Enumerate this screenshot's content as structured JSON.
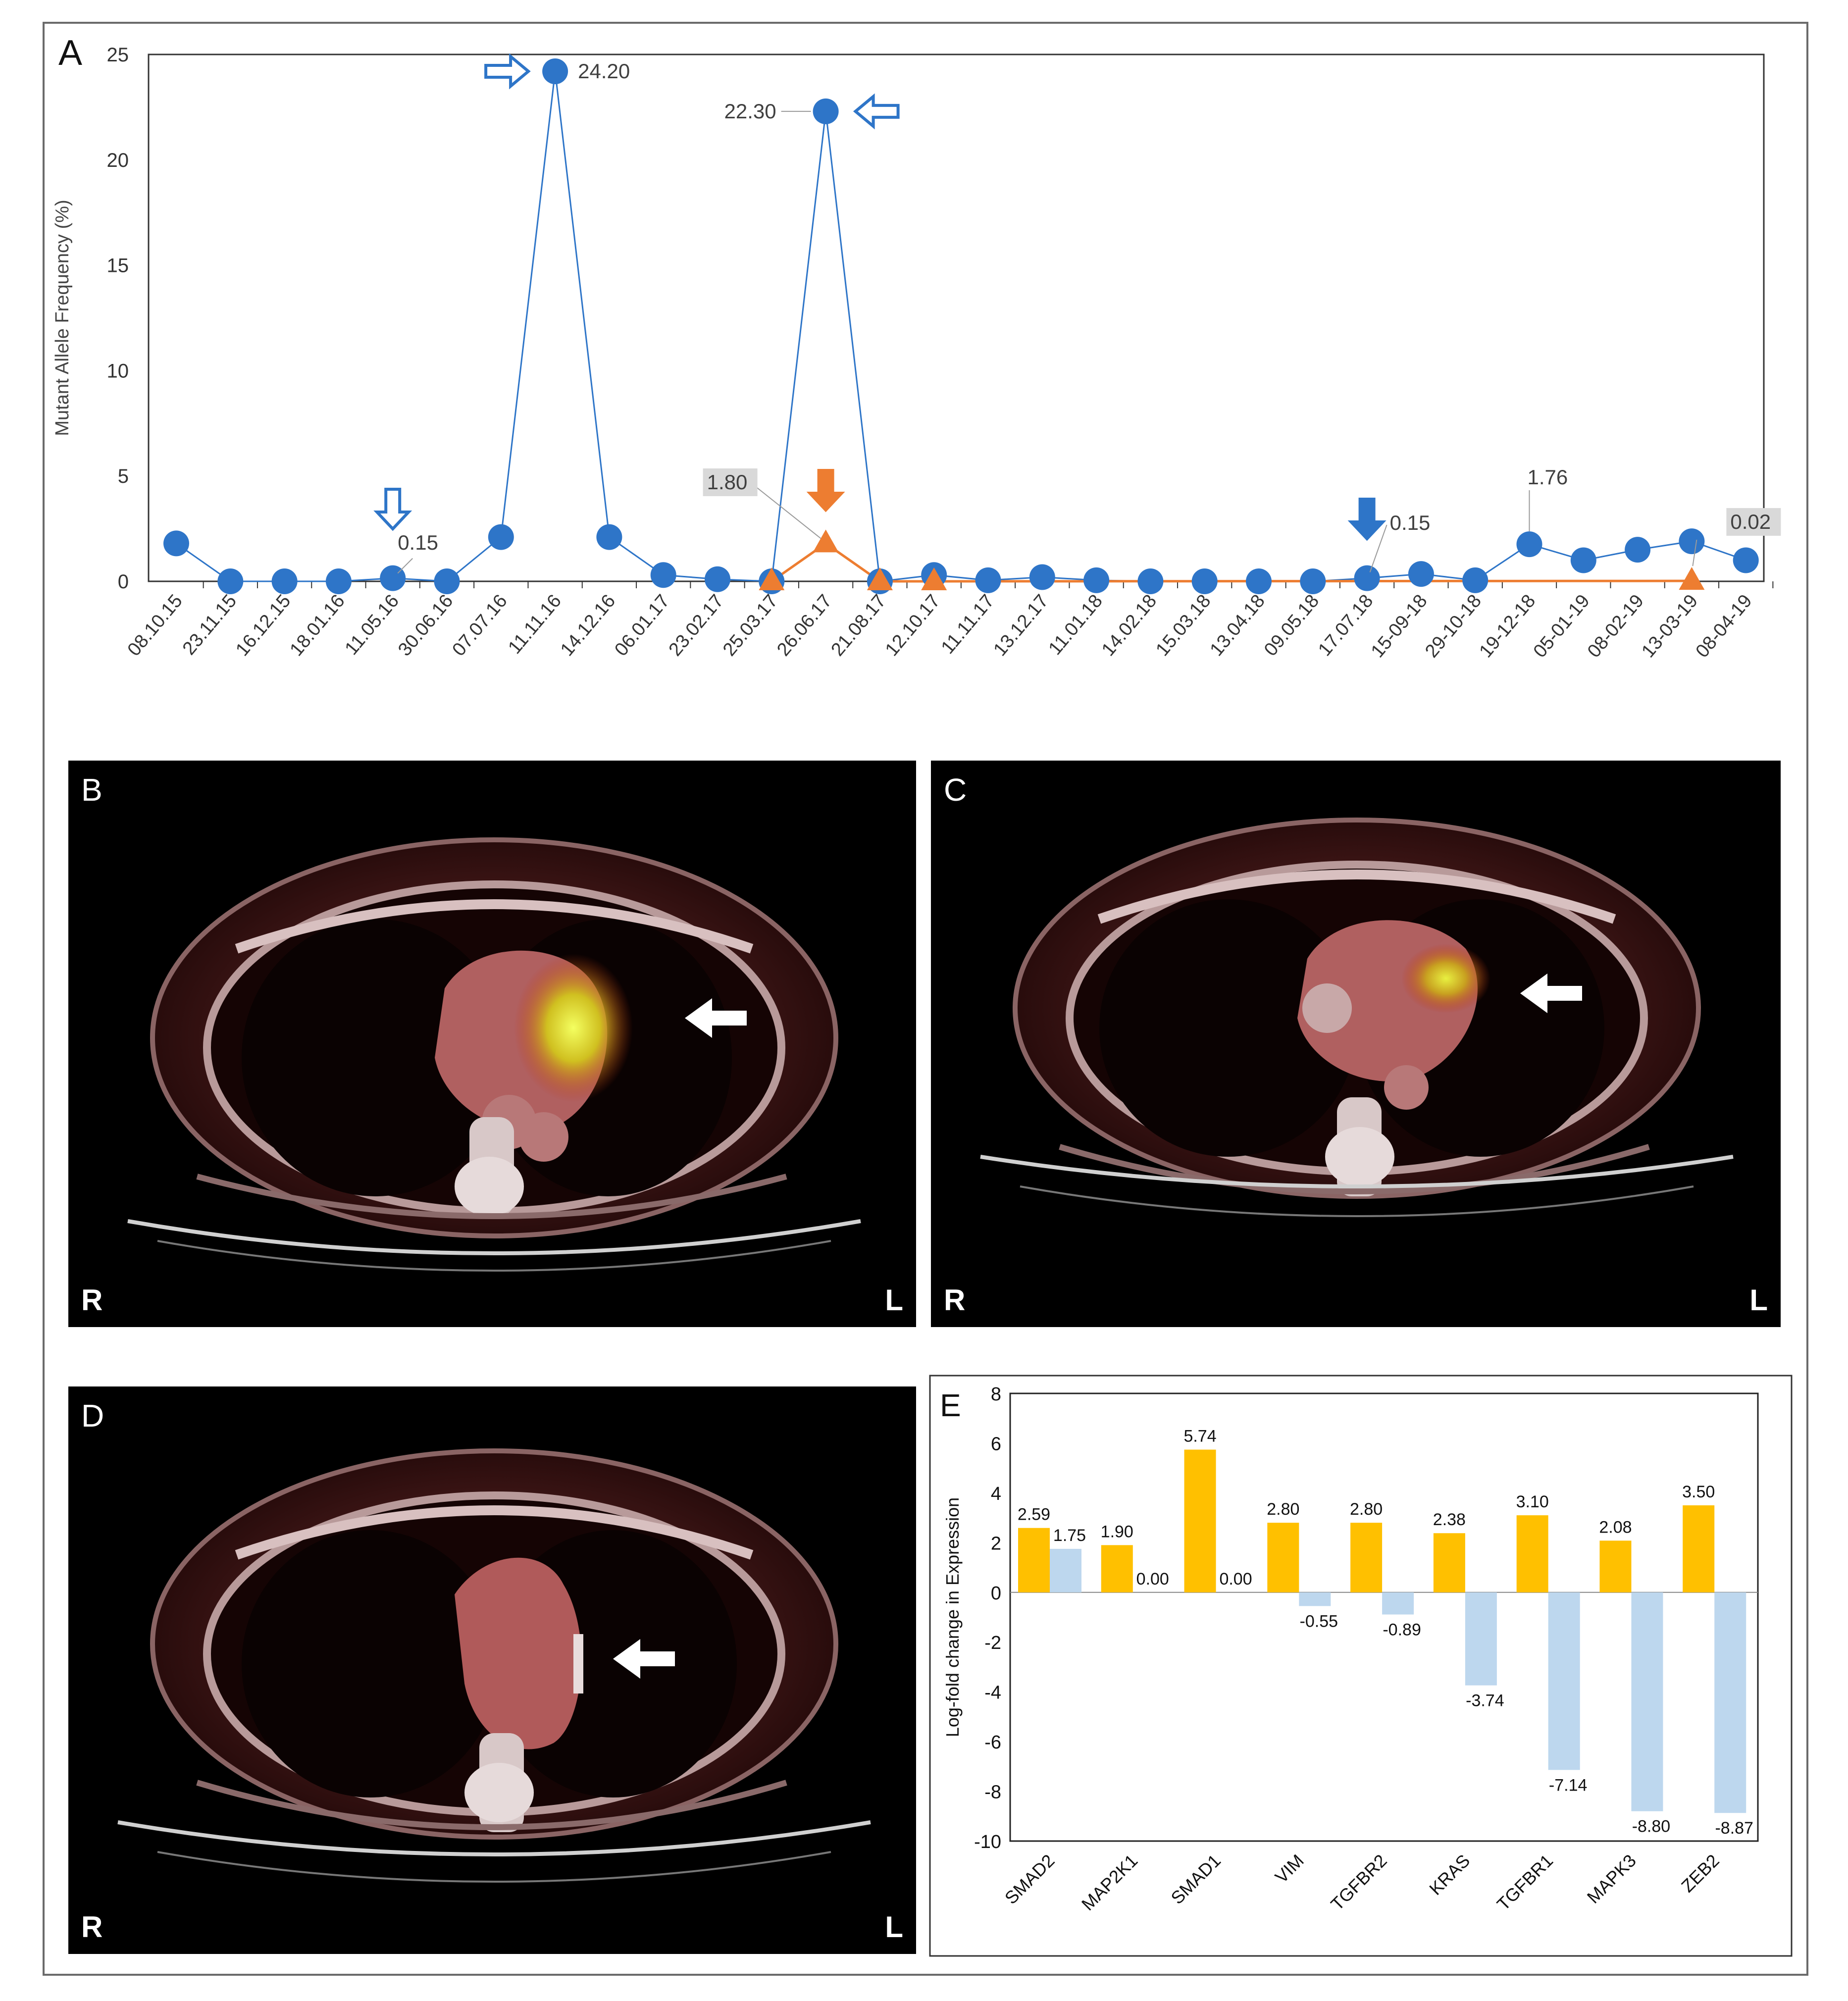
{
  "panels": {
    "a": {
      "letter": "A"
    },
    "b": {
      "letter": "B",
      "left": "R",
      "right": "L"
    },
    "c": {
      "letter": "C",
      "left": "R",
      "right": "L"
    },
    "d": {
      "letter": "D",
      "left": "R",
      "right": "L"
    },
    "e": {
      "letter": "E"
    }
  },
  "chart_data": [
    {
      "id": "A",
      "type": "line",
      "ylabel": "Mutant Allele Frequency (%)",
      "xlabel": "",
      "ylim": [
        0,
        25
      ],
      "yticks": [
        0,
        5,
        10,
        15,
        20,
        25
      ],
      "grid": false,
      "categories": [
        "08.10.15",
        "23.11.15",
        "16.12.15",
        "18.01.16",
        "11.05.16",
        "30.06.16",
        "07.07.16",
        "11.11.16",
        "14.12.16",
        "06.01.17",
        "23.02.17",
        "25.03.17",
        "26.06.17",
        "21.08.17",
        "12.10.17",
        "11.11.17",
        "13.12.17",
        "11.01.18",
        "14.02.18",
        "15.03.18",
        "13.04.18",
        "09.05.18",
        "17.07.18",
        "15-09-18",
        "29-10-18",
        "19-12-18",
        "05-01-19",
        "08-02-19",
        "13-03-19",
        "08-04-19"
      ],
      "series": [
        {
          "name": "blue",
          "color": "#2e75c8",
          "marker": "circle",
          "x": [
            0,
            1,
            2,
            3,
            4,
            5,
            6,
            7,
            8,
            9,
            10,
            11,
            12,
            13,
            14,
            15,
            16,
            17,
            18,
            19,
            20,
            21,
            22,
            23,
            24,
            25,
            26,
            27,
            28,
            29
          ],
          "values": [
            1.8,
            0.0,
            0.0,
            0.0,
            0.15,
            0.0,
            2.1,
            24.2,
            2.1,
            0.3,
            0.1,
            0.0,
            22.3,
            0.0,
            0.3,
            0.05,
            0.2,
            0.05,
            0.0,
            0.0,
            0.0,
            0.0,
            0.15,
            0.35,
            0.05,
            1.76,
            1.0,
            1.5,
            1.9,
            1.0
          ]
        },
        {
          "name": "orange",
          "color": "#ed7d31",
          "marker": "triangle",
          "x": [
            11,
            12,
            13,
            14,
            28
          ],
          "values": [
            0.0,
            1.8,
            0.0,
            0.0,
            0.02
          ]
        }
      ],
      "annotations": [
        {
          "text": "24.20",
          "x": 7,
          "y": 24.2,
          "boxed": false,
          "arrow": "right-open",
          "arrow_color": "#2e75c8"
        },
        {
          "text": "22.30",
          "x": 12,
          "y": 22.3,
          "boxed": false,
          "arrow": "left-open",
          "arrow_color": "#2e75c8"
        },
        {
          "text": "0.15",
          "x": 4,
          "y": 0.15,
          "boxed": false,
          "arrow": "down-open",
          "arrow_color": "#2e75c8"
        },
        {
          "text": "1.80",
          "x": 12,
          "y": 1.8,
          "boxed": true,
          "arrow": "down-filled",
          "arrow_color": "#ed7d31"
        },
        {
          "text": "0.15",
          "x": 22,
          "y": 0.15,
          "boxed": false,
          "arrow": "down-filled",
          "arrow_color": "#2e75c8"
        },
        {
          "text": "1.76",
          "x": 25,
          "y": 1.76,
          "boxed": false,
          "arrow": "none"
        },
        {
          "text": "0.02",
          "x": 28,
          "y": 0.02,
          "boxed": true,
          "arrow": "none"
        }
      ]
    },
    {
      "id": "E",
      "type": "bar",
      "ylabel": "Log-fold change in Expression",
      "xlabel": "",
      "ylim": [
        -10,
        8
      ],
      "yticks": [
        -10,
        -8,
        -6,
        -4,
        -2,
        0,
        2,
        4,
        6,
        8
      ],
      "categories": [
        "SMAD2",
        "MAP2K1",
        "SMAD1",
        "VIM",
        "TGFBR2",
        "KRAS",
        "TGFBR1",
        "MAPK3",
        "ZEB2"
      ],
      "series": [
        {
          "name": "orange",
          "color": "#ffc000",
          "values": [
            2.59,
            1.9,
            5.74,
            2.8,
            2.8,
            2.38,
            3.1,
            2.08,
            3.5
          ],
          "labels": [
            "2.59",
            "1.90",
            "5.74",
            "2.80",
            "2.80",
            "2.38",
            "3.10",
            "2.08",
            "3.50"
          ]
        },
        {
          "name": "lightblue",
          "color": "#bdd7ee",
          "values": [
            1.75,
            0.0,
            0.0,
            -0.55,
            -0.89,
            -3.74,
            -7.14,
            -8.8,
            -8.87
          ],
          "labels": [
            "1.75",
            "0.00",
            "0.00",
            "-0.55",
            "-0.89",
            "-3.74",
            "-7.14",
            "-8.80",
            "-8.87"
          ]
        }
      ]
    }
  ]
}
